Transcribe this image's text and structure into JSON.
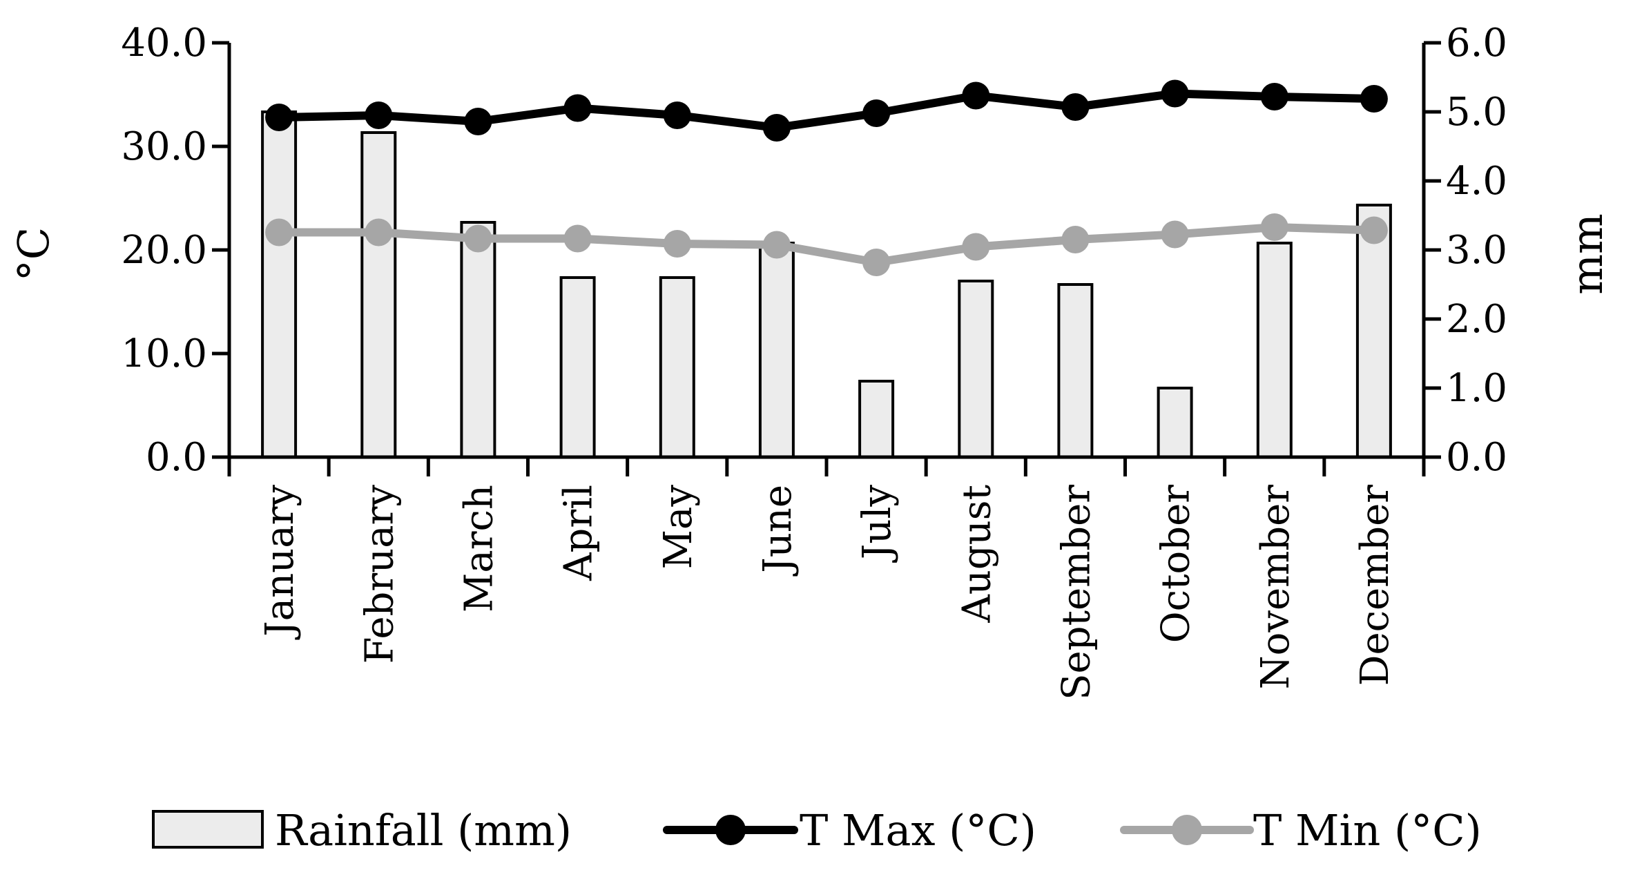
{
  "chart_data": {
    "type": "bar+line",
    "categories": [
      "January",
      "February",
      "March",
      "April",
      "May",
      "June",
      "July",
      "August",
      "September",
      "October",
      "November",
      "December"
    ],
    "series": [
      {
        "name": "Rainfall (mm)",
        "type": "bar",
        "axis": "right",
        "values": [
          5.0,
          4.7,
          3.4,
          2.6,
          2.6,
          3.1,
          1.1,
          2.55,
          2.5,
          1.0,
          3.1,
          3.65
        ],
        "fill": "#ececec",
        "stroke": "#000000"
      },
      {
        "name": "T Max (°C)",
        "type": "line",
        "axis": "left",
        "values": [
          32.8,
          33.0,
          32.4,
          33.7,
          33.0,
          31.8,
          33.2,
          34.9,
          33.8,
          35.1,
          34.8,
          34.6
        ],
        "color": "#000000"
      },
      {
        "name": "T Min (°C)",
        "type": "line",
        "axis": "left",
        "values": [
          21.7,
          21.7,
          21.1,
          21.1,
          20.6,
          20.5,
          18.8,
          20.3,
          21.0,
          21.5,
          22.2,
          21.9
        ],
        "color": "#a6a6a6"
      }
    ],
    "y_left": {
      "label": "°C",
      "ylim": [
        0,
        40
      ],
      "ticks": [
        "0.0",
        "10.0",
        "20.0",
        "30.0",
        "40.0"
      ]
    },
    "y_right": {
      "label": "mm",
      "ylim": [
        0,
        6
      ],
      "ticks": [
        "0.0",
        "1.0",
        "2.0",
        "3.0",
        "4.0",
        "5.0",
        "6.0"
      ]
    },
    "legend": {
      "position": "bottom",
      "items": [
        "Rainfall (mm)",
        "T Max (°C)",
        "T Min (°C)"
      ]
    },
    "grid": false
  }
}
